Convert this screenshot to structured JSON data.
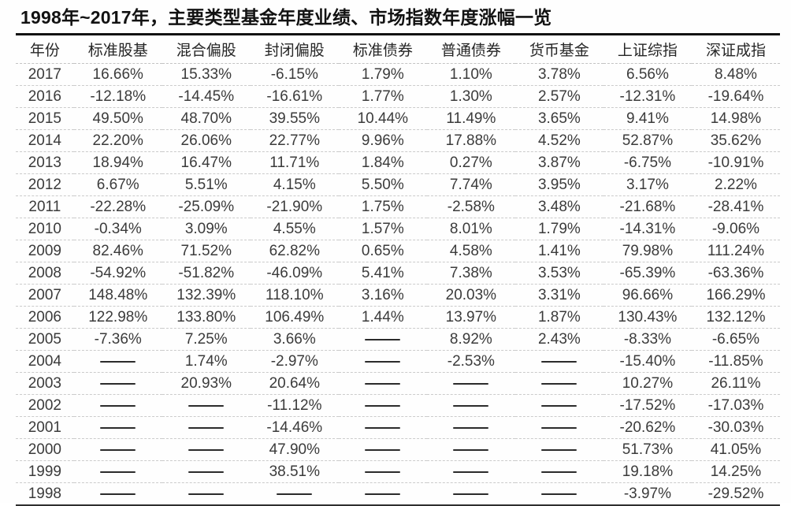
{
  "page_title": "1998年~2017年，主要类型基金年度业绩、市场指数年度涨幅一览",
  "colors": {
    "title_text": "#121212",
    "body_text": "#3b3b3b",
    "top_rule": "#121212",
    "bottom_rule": "#2e2e2e",
    "row_separator": "#cbcbcb"
  },
  "chart_data": {
    "type": "table",
    "title": "1998年~2017年，主要类型基金年度业绩、市场指数年度涨幅一览",
    "empty_cell_symbol": "——",
    "columns": [
      "年份",
      "标准股基",
      "混合偏股",
      "封闭偏股",
      "标准债券",
      "普通债券",
      "货币基金",
      "上证综指",
      "深证成指"
    ],
    "rows": [
      {
        "year": "2017",
        "values": [
          "16.66%",
          "15.33%",
          "-6.15%",
          "1.79%",
          "1.10%",
          "3.78%",
          "6.56%",
          "8.48%"
        ]
      },
      {
        "year": "2016",
        "values": [
          "-12.18%",
          "-14.45%",
          "-16.61%",
          "1.77%",
          "1.30%",
          "2.57%",
          "-12.31%",
          "-19.64%"
        ]
      },
      {
        "year": "2015",
        "values": [
          "49.50%",
          "48.70%",
          "39.55%",
          "10.44%",
          "11.49%",
          "3.65%",
          "9.41%",
          "14.98%"
        ]
      },
      {
        "year": "2014",
        "values": [
          "22.20%",
          "26.06%",
          "22.77%",
          "9.96%",
          "17.88%",
          "4.52%",
          "52.87%",
          "35.62%"
        ]
      },
      {
        "year": "2013",
        "values": [
          "18.94%",
          "16.47%",
          "11.71%",
          "1.84%",
          "0.27%",
          "3.87%",
          "-6.75%",
          "-10.91%"
        ]
      },
      {
        "year": "2012",
        "values": [
          "6.67%",
          "5.51%",
          "4.15%",
          "5.50%",
          "7.74%",
          "3.95%",
          "3.17%",
          "2.22%"
        ]
      },
      {
        "year": "2011",
        "values": [
          "-22.28%",
          "-25.09%",
          "-21.90%",
          "1.75%",
          "-2.58%",
          "3.48%",
          "-21.68%",
          "-28.41%"
        ]
      },
      {
        "year": "2010",
        "values": [
          "-0.34%",
          "3.09%",
          "4.55%",
          "1.57%",
          "8.01%",
          "1.79%",
          "-14.31%",
          "-9.06%"
        ]
      },
      {
        "year": "2009",
        "values": [
          "82.46%",
          "71.52%",
          "62.82%",
          "0.65%",
          "4.58%",
          "1.41%",
          "79.98%",
          "111.24%"
        ]
      },
      {
        "year": "2008",
        "values": [
          "-54.92%",
          "-51.82%",
          "-46.09%",
          "5.41%",
          "7.38%",
          "3.53%",
          "-65.39%",
          "-63.36%"
        ]
      },
      {
        "year": "2007",
        "values": [
          "148.48%",
          "132.39%",
          "118.10%",
          "3.16%",
          "20.03%",
          "3.31%",
          "96.66%",
          "166.29%"
        ]
      },
      {
        "year": "2006",
        "values": [
          "122.98%",
          "133.80%",
          "106.49%",
          "1.44%",
          "13.97%",
          "1.87%",
          "130.43%",
          "132.12%"
        ]
      },
      {
        "year": "2005",
        "values": [
          "-7.36%",
          "7.25%",
          "3.66%",
          "——",
          "8.92%",
          "2.43%",
          "-8.33%",
          "-6.65%"
        ]
      },
      {
        "year": "2004",
        "values": [
          "——",
          "1.74%",
          "-2.97%",
          "——",
          "-2.53%",
          "——",
          "-15.40%",
          "-11.85%"
        ]
      },
      {
        "year": "2003",
        "values": [
          "——",
          "20.93%",
          "20.64%",
          "——",
          "——",
          "——",
          "10.27%",
          "26.11%"
        ]
      },
      {
        "year": "2002",
        "values": [
          "——",
          "——",
          "-11.12%",
          "——",
          "——",
          "——",
          "-17.52%",
          "-17.03%"
        ]
      },
      {
        "year": "2001",
        "values": [
          "——",
          "——",
          "-14.46%",
          "——",
          "——",
          "——",
          "-20.62%",
          "-30.03%"
        ]
      },
      {
        "year": "2000",
        "values": [
          "——",
          "——",
          "47.90%",
          "——",
          "——",
          "——",
          "51.73%",
          "41.05%"
        ]
      },
      {
        "year": "1999",
        "values": [
          "——",
          "——",
          "38.51%",
          "——",
          "——",
          "——",
          "19.18%",
          "14.25%"
        ]
      },
      {
        "year": "1998",
        "values": [
          "——",
          "——",
          "——",
          "——",
          "——",
          "——",
          "-3.97%",
          "-29.52%"
        ]
      }
    ]
  }
}
